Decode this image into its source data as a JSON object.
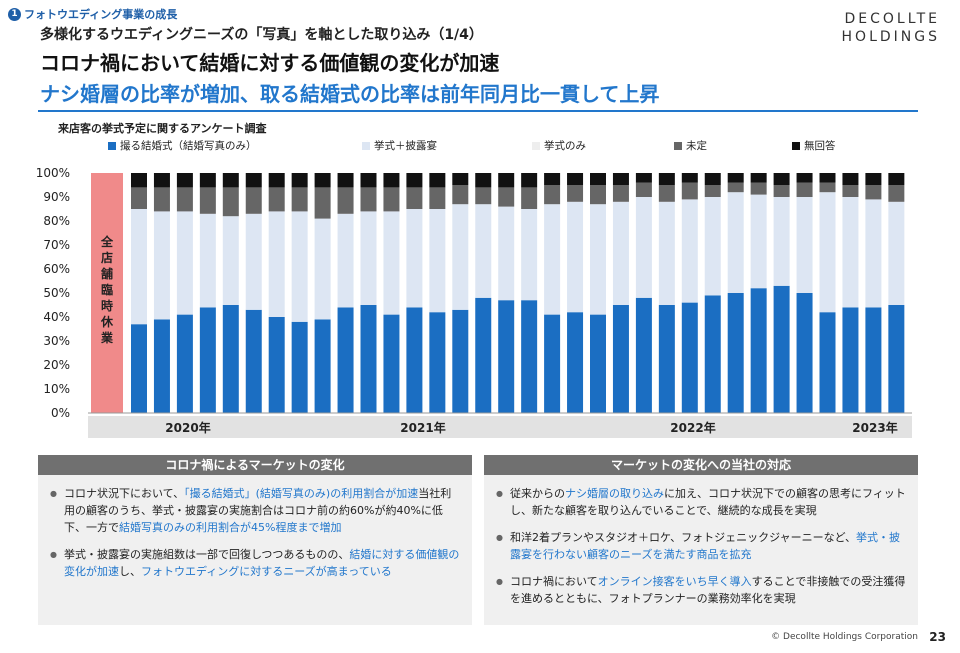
{
  "header": {
    "section_number": "1",
    "section_label": "フォトウエディング事業の成長",
    "subtitle": "多様化するウエディングニーズの「写真」を軸とした取り込み（1/4）",
    "title": "コロナ禍において結婚に対する価値観の変化が加速",
    "headline": "ナシ婚層の比率が増加、取る結婚式の比率は前年同月比一貫して上昇",
    "logo_line1": "DECOLLTE",
    "logo_line2": "HOLDINGS"
  },
  "chart_data": {
    "type": "bar",
    "stacked": true,
    "title": "来店客の挙式予定に関するアンケート調査",
    "ylim": [
      0,
      100
    ],
    "yticks": [
      "0%",
      "10%",
      "20%",
      "30%",
      "40%",
      "50%",
      "60%",
      "70%",
      "80%",
      "90%",
      "100%"
    ],
    "year_labels": [
      "2020年",
      "2021年",
      "2022年",
      "2023年"
    ],
    "closure_label": "全店舗臨時休業",
    "series": [
      {
        "name": "撮る結婚式（結婚写真のみ）",
        "color": "#1b6ec2",
        "values": [
          37,
          39,
          41,
          44,
          45,
          43,
          40,
          38,
          39,
          44,
          45,
          41,
          44,
          42,
          43,
          48,
          47,
          47,
          41,
          42,
          41,
          45,
          48,
          45,
          46,
          49,
          50,
          52,
          53,
          50,
          42,
          44,
          44,
          45
        ]
      },
      {
        "name": "挙式＋披露宴",
        "color": "#dde6f3",
        "values": [
          48,
          45,
          43,
          39,
          37,
          40,
          44,
          46,
          42,
          39,
          39,
          43,
          41,
          43,
          44,
          39,
          39,
          38,
          46,
          46,
          46,
          43,
          42,
          43,
          43,
          41,
          42,
          39,
          37,
          40,
          50,
          46,
          45,
          43
        ]
      },
      {
        "name": "挙式のみ",
        "color": "#eeeeee",
        "values": [
          0,
          0,
          0,
          0,
          0,
          0,
          0,
          0,
          0,
          0,
          0,
          0,
          0,
          0,
          0,
          0,
          0,
          0,
          0,
          0,
          0,
          0,
          0,
          0,
          0,
          0,
          0,
          0,
          0,
          0,
          0,
          0,
          0,
          0
        ]
      },
      {
        "name": "未定",
        "color": "#666666",
        "values": [
          9,
          10,
          10,
          11,
          12,
          11,
          10,
          10,
          13,
          11,
          10,
          10,
          9,
          9,
          8,
          7,
          8,
          9,
          8,
          7,
          8,
          7,
          6,
          7,
          7,
          5,
          4,
          5,
          5,
          6,
          4,
          5,
          6,
          7
        ]
      },
      {
        "name": "無回答",
        "color": "#111111",
        "values": [
          6,
          6,
          6,
          6,
          6,
          6,
          6,
          6,
          6,
          6,
          6,
          6,
          6,
          6,
          5,
          6,
          6,
          6,
          5,
          5,
          5,
          5,
          4,
          5,
          4,
          5,
          4,
          4,
          5,
          4,
          4,
          5,
          5,
          5
        ]
      }
    ]
  },
  "panels": {
    "left": {
      "heading": "コロナ禍によるマーケットの変化",
      "bullets": [
        {
          "parts": [
            {
              "t": "コロナ状況下において、",
              "hl": false
            },
            {
              "t": "「撮る結婚式」(結婚写真のみ)の利用割合が加速",
              "hl": true
            },
            {
              "t": "当社利用の顧客のうち、挙式・披露宴の実施割合はコロナ前の約60%が約40%に低下、一方で",
              "hl": false
            },
            {
              "t": "結婚写真のみの利用割合が45%程度まで増加",
              "hl": true
            }
          ]
        },
        {
          "parts": [
            {
              "t": "挙式・披露宴の実施組数は一部で回復しつつあるものの、",
              "hl": false
            },
            {
              "t": "結婚に対する価値観の変化が加速",
              "hl": true
            },
            {
              "t": "し、",
              "hl": false
            },
            {
              "t": "フォトウエディングに対するニーズが高まっている",
              "hl": true
            }
          ]
        }
      ]
    },
    "right": {
      "heading": "マーケットの変化への当社の対応",
      "bullets": [
        {
          "parts": [
            {
              "t": "従来からの",
              "hl": false
            },
            {
              "t": "ナシ婚層の取り込み",
              "hl": true
            },
            {
              "t": "に加え、コロナ状況下での顧客の思考にフィットし、新たな顧客を取り込んでいることで、継続的な成長を実現",
              "hl": false
            }
          ]
        },
        {
          "parts": [
            {
              "t": "和洋2着プランやスタジオ＋ロケ、フォトジェニックジャーニーなど、",
              "hl": false
            },
            {
              "t": "挙式・披露宴を行わない顧客のニーズを満たす商品を拡充",
              "hl": true
            }
          ]
        },
        {
          "parts": [
            {
              "t": "コロナ禍において",
              "hl": false
            },
            {
              "t": "オンライン接客をいち早く導入",
              "hl": true
            },
            {
              "t": "することで非接触での受注獲得を進めるとともに、フォトプランナーの業務効率化を実現",
              "hl": false
            }
          ]
        }
      ]
    }
  },
  "footer": {
    "copyright": "© Decollte Holdings Corporation",
    "page_number": "23"
  }
}
